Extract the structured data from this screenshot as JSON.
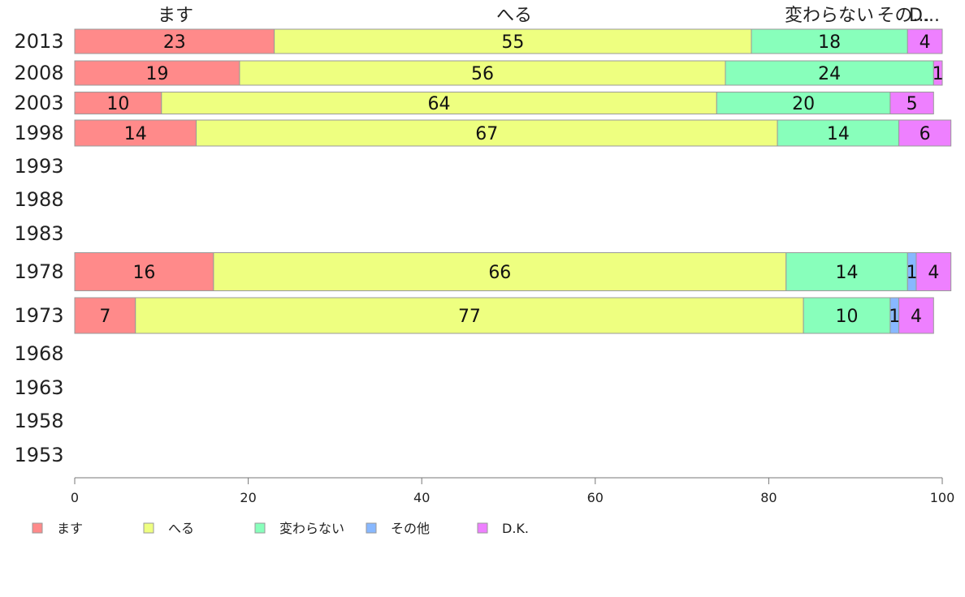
{
  "chart_data": {
    "type": "bar",
    "orientation": "horizontal",
    "stacked": true,
    "normalized_to": 100,
    "categories": [
      "2013",
      "2008",
      "2003",
      "1998",
      "1993",
      "1988",
      "1983",
      "1978",
      "1973",
      "1968",
      "1963",
      "1958",
      "1953"
    ],
    "series": [
      {
        "name": "ます",
        "color": "#ff8a8a",
        "values": [
          23,
          19,
          10,
          14,
          null,
          null,
          null,
          16,
          7,
          null,
          null,
          null,
          null
        ]
      },
      {
        "name": "へる",
        "color": "#eeff80",
        "values": [
          55,
          56,
          64,
          67,
          null,
          null,
          null,
          66,
          77,
          null,
          null,
          null,
          null
        ]
      },
      {
        "name": "変わらない",
        "color": "#88ffbb",
        "values": [
          18,
          24,
          20,
          14,
          null,
          null,
          null,
          14,
          10,
          null,
          null,
          null,
          null
        ]
      },
      {
        "name": "その他",
        "color": "#88b8ff",
        "values": [
          0,
          0,
          0,
          0,
          null,
          null,
          null,
          1,
          1,
          null,
          null,
          null,
          null
        ]
      },
      {
        "name": "D.K.",
        "color": "#ee80ff",
        "values": [
          4,
          1,
          5,
          6,
          null,
          null,
          null,
          4,
          4,
          null,
          null,
          null,
          null
        ]
      }
    ],
    "top_labels": [
      "ます",
      "へる",
      "変わらない",
      "その...",
      "D..."
    ],
    "x_ticks": [
      "0",
      "20",
      "40",
      "60",
      "80",
      "100"
    ],
    "xlim": [
      0,
      100
    ],
    "grid": false,
    "legend_position": "bottom"
  }
}
